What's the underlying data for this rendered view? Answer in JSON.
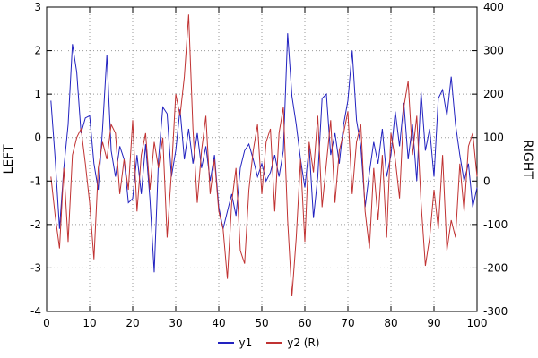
{
  "axes": {
    "left_label": "LEFT",
    "right_label": "RIGHT",
    "x_ticks": [
      0,
      10,
      20,
      30,
      40,
      50,
      60,
      70,
      80,
      90,
      100
    ],
    "left_ticks": [
      -4,
      -3,
      -2,
      -1,
      0,
      1,
      2,
      3
    ],
    "right_ticks": [
      -300,
      -200,
      -100,
      0,
      100,
      200,
      300,
      400
    ]
  },
  "chart_data": {
    "type": "line",
    "title": "",
    "xlabel": "",
    "left_ylabel": "LEFT",
    "right_ylabel": "RIGHT",
    "xlim": [
      0,
      100
    ],
    "left_ylim": [
      -4,
      3
    ],
    "right_ylim": [
      -300,
      400
    ],
    "grid": true,
    "grid_style": "dotted",
    "legend_position": "bottom-center",
    "x": [
      1,
      2,
      3,
      4,
      5,
      6,
      7,
      8,
      9,
      10,
      11,
      12,
      13,
      14,
      15,
      16,
      17,
      18,
      19,
      20,
      21,
      22,
      23,
      24,
      25,
      26,
      27,
      28,
      29,
      30,
      31,
      32,
      33,
      34,
      35,
      36,
      37,
      38,
      39,
      40,
      41,
      42,
      43,
      44,
      45,
      46,
      47,
      48,
      49,
      50,
      51,
      52,
      53,
      54,
      55,
      56,
      57,
      58,
      59,
      60,
      61,
      62,
      63,
      64,
      65,
      66,
      67,
      68,
      69,
      70,
      71,
      72,
      73,
      74,
      75,
      76,
      77,
      78,
      79,
      80,
      81,
      82,
      83,
      84,
      85,
      86,
      87,
      88,
      89,
      90,
      91,
      92,
      93,
      94,
      95,
      96,
      97,
      98,
      99,
      100
    ],
    "series": [
      {
        "name": "y1",
        "axis": "left",
        "color": "#2222c0",
        "values": [
          0.85,
          -0.5,
          -2.1,
          -0.7,
          0.3,
          2.15,
          1.5,
          0.1,
          0.45,
          0.5,
          -0.6,
          -1.2,
          0.2,
          1.9,
          -0.3,
          -0.9,
          -0.2,
          -0.5,
          -1.5,
          -1.4,
          -0.4,
          -1.3,
          -0.15,
          -1.4,
          -3.1,
          -0.5,
          0.7,
          0.55,
          -0.9,
          -0.3,
          0.65,
          -0.5,
          0.2,
          -0.6,
          0.1,
          -0.7,
          -0.2,
          -1.0,
          -0.4,
          -1.6,
          -2.1,
          -1.7,
          -1.3,
          -1.8,
          -0.7,
          -0.3,
          -0.15,
          -0.5,
          -0.9,
          -0.6,
          -1.0,
          -0.8,
          -0.4,
          -0.9,
          -0.3,
          2.4,
          0.95,
          0.3,
          -0.5,
          -1.15,
          -0.2,
          -1.85,
          -0.9,
          0.9,
          1.0,
          -0.4,
          0.1,
          -0.6,
          0.3,
          0.85,
          2.0,
          0.4,
          -0.2,
          -1.6,
          -0.8,
          -0.1,
          -0.6,
          0.2,
          -0.9,
          -0.4,
          0.6,
          -0.2,
          0.8,
          -0.5,
          0.3,
          -1.0,
          1.05,
          -0.3,
          0.2,
          -0.9,
          0.9,
          1.1,
          0.5,
          1.4,
          0.3,
          -0.4,
          -1.0,
          -0.6,
          -1.6,
          -1.15
        ]
      },
      {
        "name": "y2 (R)",
        "axis": "right",
        "color": "#c03232",
        "values": [
          10,
          -80,
          -155,
          30,
          -140,
          60,
          100,
          120,
          40,
          -50,
          -180,
          30,
          90,
          50,
          130,
          110,
          -30,
          50,
          -20,
          140,
          -70,
          60,
          110,
          -20,
          90,
          30,
          100,
          -130,
          20,
          200,
          150,
          240,
          383,
          120,
          -50,
          70,
          150,
          -30,
          50,
          -70,
          -110,
          -225,
          -50,
          30,
          -160,
          -190,
          -20,
          70,
          130,
          -30,
          90,
          120,
          -70,
          110,
          170,
          -90,
          -265,
          -130,
          50,
          -140,
          90,
          20,
          150,
          -60,
          40,
          140,
          -50,
          70,
          110,
          160,
          -30,
          90,
          130,
          -70,
          -155,
          30,
          -90,
          60,
          -130,
          110,
          50,
          -40,
          170,
          230,
          60,
          150,
          -50,
          -195,
          -130,
          -20,
          -110,
          60,
          -160,
          -90,
          -130,
          40,
          -70,
          80,
          110,
          10
        ]
      }
    ]
  },
  "legend": {
    "items": [
      "y1",
      "y2 (R)"
    ]
  }
}
